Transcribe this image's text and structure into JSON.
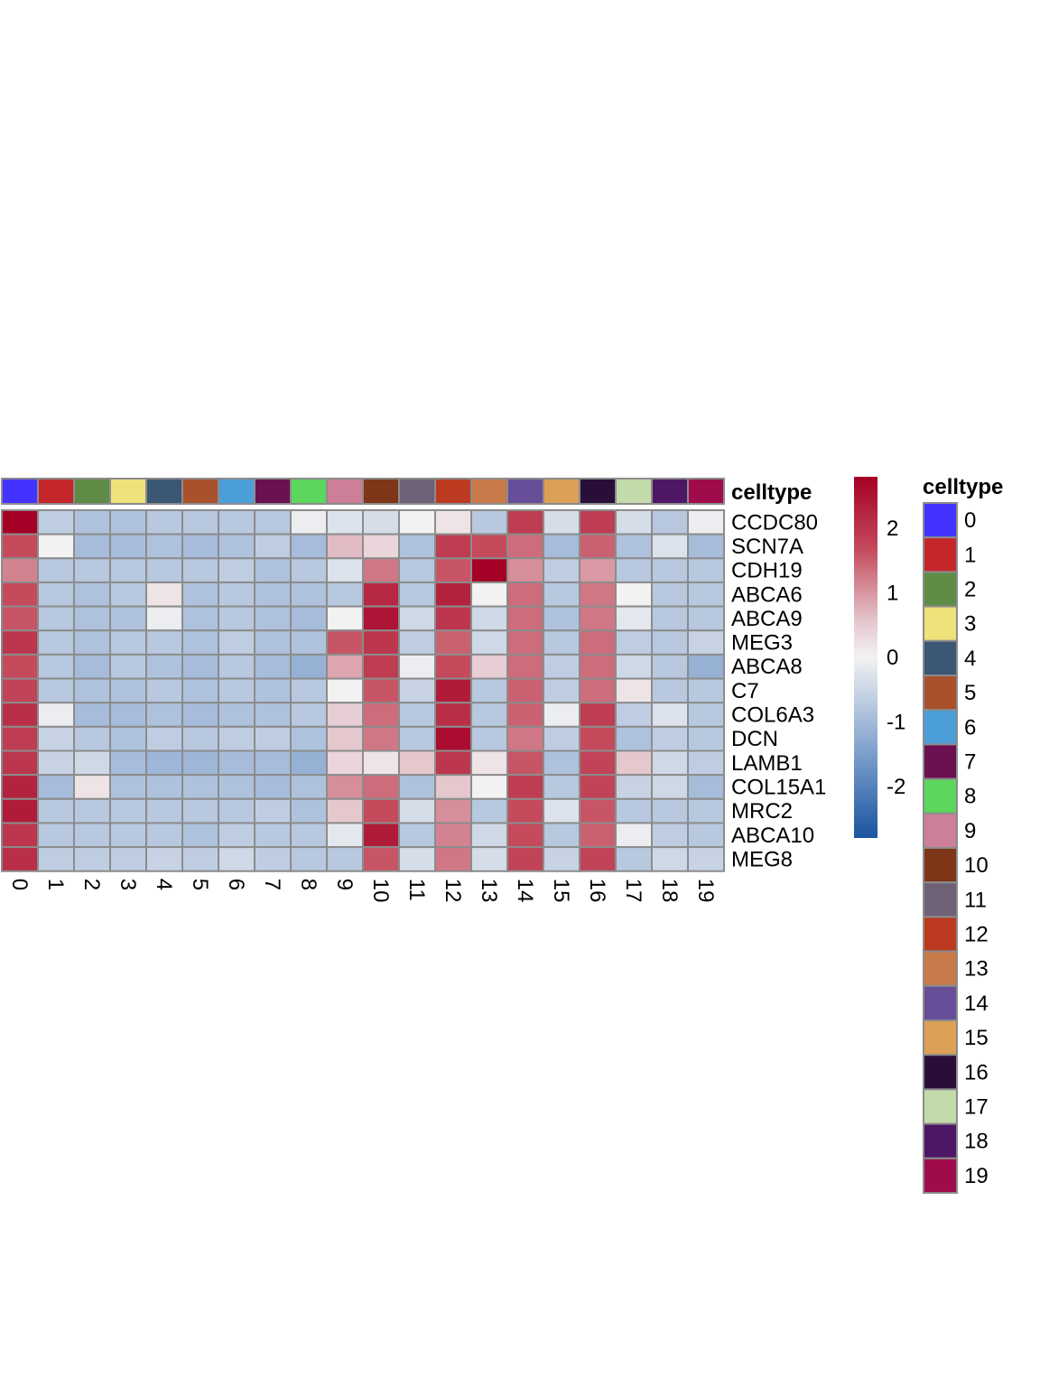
{
  "chart_data": {
    "type": "heatmap",
    "title": "",
    "columns": [
      "0",
      "1",
      "2",
      "3",
      "4",
      "5",
      "6",
      "7",
      "8",
      "9",
      "10",
      "11",
      "12",
      "13",
      "14",
      "15",
      "16",
      "17",
      "18",
      "19"
    ],
    "rows": [
      "CCDC80",
      "SCN7A",
      "CDH19",
      "ABCA6",
      "ABCA9",
      "MEG3",
      "ABCA8",
      "C7",
      "COL6A3",
      "DCN",
      "LAMB1",
      "COL15A1",
      "MRC2",
      "ABCA10",
      "MEG8"
    ],
    "values": [
      [
        2.8,
        -0.7,
        -0.9,
        -0.9,
        -0.8,
        -0.8,
        -0.8,
        -0.8,
        -0.1,
        -0.3,
        -0.4,
        0.0,
        0.2,
        -0.8,
        1.9,
        -0.4,
        1.9,
        -0.4,
        -0.8,
        -0.1
      ],
      [
        1.7,
        0.0,
        -1.0,
        -1.0,
        -0.9,
        -1.0,
        -0.9,
        -0.7,
        -1.0,
        0.7,
        0.4,
        -0.9,
        1.9,
        1.7,
        1.4,
        -1.0,
        1.5,
        -0.9,
        -0.3,
        -1.0
      ],
      [
        1.2,
        -0.8,
        -0.8,
        -0.8,
        -0.8,
        -0.8,
        -0.7,
        -0.9,
        -0.8,
        -0.3,
        1.3,
        -0.8,
        1.6,
        2.8,
        1.1,
        -0.7,
        1.0,
        -0.8,
        -0.8,
        -0.8
      ],
      [
        1.7,
        -0.8,
        -0.9,
        -0.8,
        0.2,
        -0.9,
        -0.8,
        -0.9,
        -0.9,
        -0.8,
        2.2,
        -0.8,
        2.3,
        0.0,
        1.4,
        -0.8,
        1.3,
        0.0,
        -0.8,
        -0.8
      ],
      [
        1.6,
        -0.8,
        -0.9,
        -0.9,
        -0.1,
        -0.9,
        -0.8,
        -0.9,
        -1.0,
        0.0,
        2.5,
        -0.5,
        2.0,
        -0.5,
        1.4,
        -0.9,
        1.3,
        -0.2,
        -0.8,
        -0.8
      ],
      [
        2.0,
        -0.8,
        -0.9,
        -0.8,
        -0.8,
        -0.9,
        -0.7,
        -0.9,
        -0.9,
        1.6,
        2.0,
        -0.7,
        1.5,
        -0.5,
        1.4,
        -0.8,
        1.4,
        -0.7,
        -0.8,
        -0.6
      ],
      [
        1.7,
        -0.8,
        -1.0,
        -0.8,
        -0.9,
        -1.0,
        -0.8,
        -1.0,
        -1.2,
        0.9,
        1.9,
        -0.1,
        1.7,
        0.5,
        1.4,
        -0.7,
        1.4,
        -0.5,
        -0.8,
        -1.2
      ],
      [
        1.8,
        -0.8,
        -0.9,
        -0.9,
        -0.8,
        -0.9,
        -0.8,
        -0.9,
        -0.8,
        0.0,
        1.6,
        -0.6,
        2.4,
        -0.8,
        1.5,
        -0.7,
        1.4,
        0.2,
        -0.8,
        -0.8
      ],
      [
        2.1,
        -0.1,
        -1.0,
        -1.0,
        -0.9,
        -1.0,
        -0.9,
        -0.9,
        -0.8,
        0.5,
        1.4,
        -0.8,
        2.1,
        -0.8,
        1.5,
        -0.1,
        1.9,
        -0.7,
        -0.3,
        -0.8
      ],
      [
        1.9,
        -0.6,
        -0.8,
        -0.9,
        -0.7,
        -0.8,
        -0.7,
        -0.7,
        -0.9,
        0.6,
        1.3,
        -0.8,
        2.6,
        -0.8,
        1.3,
        -0.7,
        1.7,
        -0.9,
        -0.7,
        -0.8
      ],
      [
        2.0,
        -0.6,
        -0.5,
        -1.0,
        -1.1,
        -1.1,
        -1.0,
        -1.0,
        -1.2,
        0.4,
        0.2,
        0.6,
        2.0,
        0.2,
        1.6,
        -0.9,
        1.8,
        0.6,
        -0.5,
        -0.7
      ],
      [
        2.3,
        -1.0,
        0.2,
        -0.9,
        -0.9,
        -0.9,
        -0.9,
        -1.0,
        -0.9,
        1.1,
        1.4,
        -0.9,
        0.6,
        0.0,
        1.9,
        -0.8,
        1.8,
        -0.6,
        -0.5,
        -1.0
      ],
      [
        2.4,
        -0.8,
        -0.8,
        -0.8,
        -0.8,
        -0.8,
        -0.8,
        -0.7,
        -0.9,
        0.6,
        1.7,
        -0.4,
        1.1,
        -0.8,
        1.7,
        -0.3,
        1.6,
        -0.8,
        -0.8,
        -0.8
      ],
      [
        2.0,
        -0.8,
        -0.8,
        -0.8,
        -0.8,
        -0.9,
        -0.7,
        -0.8,
        -0.8,
        -0.2,
        2.4,
        -0.8,
        1.2,
        -0.5,
        1.7,
        -0.8,
        1.5,
        -0.1,
        -0.7,
        -0.8
      ],
      [
        2.1,
        -0.7,
        -0.7,
        -0.7,
        -0.6,
        -0.7,
        -0.5,
        -0.7,
        -0.8,
        -0.8,
        1.6,
        -0.4,
        1.3,
        -0.4,
        1.8,
        -0.6,
        1.8,
        -0.8,
        -0.5,
        -0.6
      ]
    ],
    "column_annotation": {
      "title": "celltype",
      "colors": [
        "#4433FF",
        "#C4262A",
        "#5E8C46",
        "#EFE27A",
        "#3B5774",
        "#A9502D",
        "#4C9ED9",
        "#6A1050",
        "#5CD65C",
        "#CC7F96",
        "#7E3518",
        "#6E6178",
        "#BB3A20",
        "#C97A4A",
        "#684D99",
        "#DCA056",
        "#2A0E3A",
        "#C3DBAA",
        "#4D1765",
        "#A00B4C"
      ]
    },
    "colorbar": {
      "ticks": [
        2,
        1,
        0,
        -1,
        -2
      ],
      "tick_labels": [
        "2",
        "1",
        "0",
        "-1",
        "-2"
      ],
      "range": [
        -2.8,
        2.8
      ]
    },
    "legend": {
      "title": "celltype",
      "labels": [
        "0",
        "1",
        "2",
        "3",
        "4",
        "5",
        "6",
        "7",
        "8",
        "9",
        "10",
        "11",
        "12",
        "13",
        "14",
        "15",
        "16",
        "17",
        "18",
        "19"
      ]
    }
  }
}
